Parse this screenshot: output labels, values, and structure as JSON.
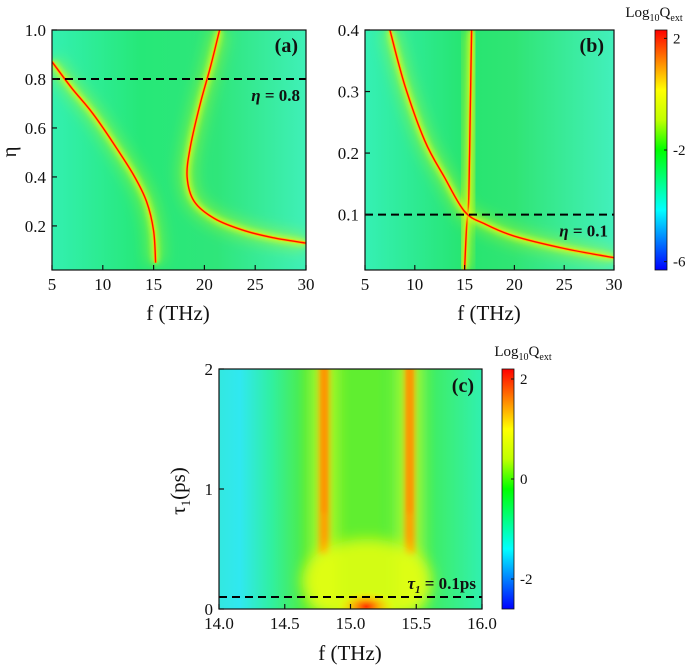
{
  "colors": {
    "colormap": [
      "#0000ff",
      "#0080ff",
      "#00ffff",
      "#00ff80",
      "#00ff00",
      "#c0ff00",
      "#ffff00",
      "#ff8000",
      "#ff0000"
    ],
    "dashed_line": "#000000"
  },
  "chart_data": [
    {
      "id": "a",
      "type": "heatmap",
      "panel_label": "(a)",
      "xlabel": "f (THz)",
      "ylabel": "η",
      "xlim": [
        5,
        30
      ],
      "ylim": [
        0.02,
        1.0
      ],
      "xticks": [
        5,
        10,
        15,
        20,
        25,
        30
      ],
      "xtick_labels": [
        "5",
        "10",
        "15",
        "20",
        "25",
        "30"
      ],
      "yticks": [
        0.2,
        0.4,
        0.6,
        0.8,
        1.0
      ],
      "ytick_labels": [
        "0.2",
        "0.4",
        "0.6",
        "0.8",
        "1.0"
      ],
      "color_range": [
        -6,
        2
      ],
      "dashed_line": {
        "y": 0.8,
        "label_symbol": "η",
        "label_value": " = 0.8"
      },
      "resonance_branches": [
        {
          "name": "lower branch",
          "points": [
            [
              5.0,
              0.87
            ],
            [
              7.0,
              0.76
            ],
            [
              9.0,
              0.66
            ],
            [
              11.0,
              0.54
            ],
            [
              13.0,
              0.41
            ],
            [
              14.3,
              0.3
            ],
            [
              15.0,
              0.18
            ],
            [
              15.2,
              0.05
            ]
          ]
        },
        {
          "name": "upper branch",
          "points": [
            [
              21.5,
              1.0
            ],
            [
              20.6,
              0.85
            ],
            [
              19.6,
              0.7
            ],
            [
              18.6,
              0.52
            ],
            [
              18.3,
              0.4
            ],
            [
              19.0,
              0.3
            ],
            [
              21.0,
              0.23
            ],
            [
              24.0,
              0.18
            ],
            [
              27.0,
              0.15
            ],
            [
              30.0,
              0.13
            ]
          ]
        }
      ]
    },
    {
      "id": "b",
      "type": "heatmap",
      "panel_label": "(b)",
      "xlabel": "f (THz)",
      "ylabel": "",
      "xlim": [
        5,
        30
      ],
      "ylim": [
        0.01,
        0.4
      ],
      "xticks": [
        5,
        10,
        15,
        20,
        25,
        30
      ],
      "xtick_labels": [
        "5",
        "10",
        "15",
        "20",
        "25",
        "30"
      ],
      "yticks": [
        0.1,
        0.2,
        0.3,
        0.4
      ],
      "ytick_labels": [
        "0.1",
        "0.2",
        "0.3",
        "0.4"
      ],
      "color_range": [
        -6,
        2
      ],
      "dashed_line": {
        "y": 0.1,
        "label_symbol": "η",
        "label_value": " = 0.1"
      },
      "resonance_branches": [
        {
          "name": "vertical branch",
          "points": [
            [
              15.7,
              0.4
            ],
            [
              15.6,
              0.3
            ],
            [
              15.5,
              0.2
            ],
            [
              15.4,
              0.12
            ],
            [
              15.2,
              0.08
            ],
            [
              15.0,
              0.01
            ]
          ]
        },
        {
          "name": "hyperbolic branch",
          "points": [
            [
              7.5,
              0.4
            ],
            [
              9.0,
              0.31
            ],
            [
              11.0,
              0.22
            ],
            [
              13.0,
              0.16
            ],
            [
              15.0,
              0.105
            ],
            [
              17.0,
              0.085
            ],
            [
              20.0,
              0.065
            ],
            [
              25.0,
              0.045
            ],
            [
              30.0,
              0.03
            ]
          ]
        }
      ]
    },
    {
      "id": "c",
      "type": "heatmap",
      "panel_label": "(c)",
      "xlabel": "f (THz)",
      "ylabel_main": "τ",
      "ylabel_sub": "1",
      "ylabel_unit": "(ps)",
      "xlim": [
        14.0,
        16.0
      ],
      "ylim": [
        0,
        2
      ],
      "xticks": [
        14.0,
        14.5,
        15.0,
        15.5,
        16.0
      ],
      "xtick_labels": [
        "14.0",
        "14.5",
        "15.0",
        "15.5",
        "16.0"
      ],
      "yticks": [
        0,
        1,
        2
      ],
      "ytick_labels": [
        "0",
        "1",
        "2"
      ],
      "color_range": [
        -2.5,
        2
      ],
      "dashed_line": {
        "y": 0.1,
        "label_symbol": "τ",
        "label_sub": "1",
        "label_value": " = 0.1ps"
      },
      "resonances_THz": [
        14.8,
        15.45
      ],
      "merged_peak": {
        "x": 15.12,
        "y": 0.02
      }
    }
  ],
  "colorbars": [
    {
      "title_main": "Log",
      "title_sub1": "10",
      "title_mid": "Q",
      "title_sub2": "ext",
      "ticks": [
        "2",
        "-2",
        "-6"
      ],
      "tick_values": [
        2,
        -2,
        -6
      ],
      "range": [
        -6.3,
        2.3
      ]
    },
    {
      "title_main": "Log",
      "title_sub1": "10",
      "title_mid": "Q",
      "title_sub2": "ext",
      "ticks": [
        "2",
        "0",
        "-2"
      ],
      "tick_values": [
        2,
        0,
        -2
      ],
      "range": [
        -2.6,
        2.2
      ]
    }
  ]
}
